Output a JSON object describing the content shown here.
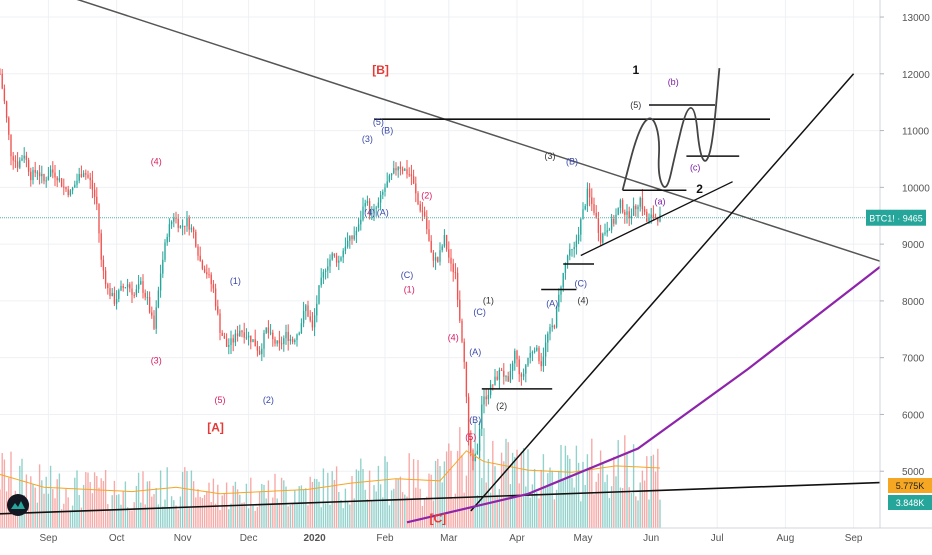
{
  "chart_data": {
    "type": "candlestick",
    "symbol_badge": "BTC1! · 9465",
    "last_price": 9465,
    "volume_badges": [
      "5.775K",
      "3.848K"
    ],
    "ylim": [
      4000,
      13300
    ],
    "y_ticks": [
      5000,
      6000,
      7000,
      8000,
      9000,
      10000,
      11000,
      12000,
      13000
    ],
    "y_tick_labels": [
      "5000",
      "6000",
      "7000",
      "8000",
      "9000",
      "10000",
      "11000",
      "12000",
      "13000"
    ],
    "x_ticks": [
      "Sep",
      "Oct",
      "Nov",
      "Dec",
      "2020",
      "Feb",
      "Mar",
      "Apr",
      "May",
      "Jun",
      "Jul",
      "Aug",
      "Sep"
    ],
    "x_range_days": [
      0,
      400
    ],
    "x_tick_days": [
      22,
      53,
      83,
      113,
      143,
      175,
      204,
      235,
      265,
      296,
      326,
      357,
      388
    ],
    "price_path": [
      [
        0,
        12000
      ],
      [
        2,
        11500
      ],
      [
        5,
        10600
      ],
      [
        8,
        10400
      ],
      [
        11,
        10600
      ],
      [
        14,
        10200
      ],
      [
        17,
        10300
      ],
      [
        20,
        10100
      ],
      [
        23,
        10300
      ],
      [
        26,
        10200
      ],
      [
        29,
        10000
      ],
      [
        32,
        9900
      ],
      [
        36,
        10200
      ],
      [
        38,
        10300
      ],
      [
        41,
        10100
      ],
      [
        44,
        9700
      ],
      [
        46,
        8700
      ],
      [
        49,
        8200
      ],
      [
        52,
        8000
      ],
      [
        55,
        8200
      ],
      [
        58,
        8300
      ],
      [
        61,
        8100
      ],
      [
        64,
        8300
      ],
      [
        67,
        8000
      ],
      [
        70,
        7500
      ],
      [
        73,
        8500
      ],
      [
        76,
        9200
      ],
      [
        79,
        9500
      ],
      [
        82,
        9300
      ],
      [
        85,
        9400
      ],
      [
        88,
        9200
      ],
      [
        91,
        8700
      ],
      [
        94,
        8500
      ],
      [
        97,
        8200
      ],
      [
        100,
        7500
      ],
      [
        103,
        7200
      ],
      [
        106,
        7300
      ],
      [
        109,
        7500
      ],
      [
        112,
        7400
      ],
      [
        115,
        7300
      ],
      [
        118,
        7100
      ],
      [
        121,
        7500
      ],
      [
        124,
        7300
      ],
      [
        127,
        7200
      ],
      [
        130,
        7400
      ],
      [
        133,
        7300
      ],
      [
        136,
        7500
      ],
      [
        139,
        7900
      ],
      [
        142,
        7500
      ],
      [
        145,
        8200
      ],
      [
        148,
        8600
      ],
      [
        151,
        8800
      ],
      [
        154,
        8700
      ],
      [
        157,
        9000
      ],
      [
        160,
        9100
      ],
      [
        163,
        9300
      ],
      [
        166,
        9800
      ],
      [
        169,
        9500
      ],
      [
        172,
        9700
      ],
      [
        175,
        10000
      ],
      [
        178,
        10200
      ],
      [
        181,
        10400
      ],
      [
        184,
        10300
      ],
      [
        187,
        10200
      ],
      [
        190,
        9700
      ],
      [
        193,
        9500
      ],
      [
        196,
        8800
      ],
      [
        199,
        8700
      ],
      [
        202,
        9100
      ],
      [
        205,
        8600
      ],
      [
        207,
        8500
      ],
      [
        209,
        7700
      ],
      [
        211,
        7000
      ],
      [
        213,
        5500
      ],
      [
        215,
        5100
      ],
      [
        217,
        5400
      ],
      [
        219,
        6200
      ],
      [
        222,
        6400
      ],
      [
        225,
        6600
      ],
      [
        228,
        6800
      ],
      [
        231,
        6500
      ],
      [
        234,
        7100
      ],
      [
        237,
        6600
      ],
      [
        240,
        7000
      ],
      [
        243,
        7200
      ],
      [
        246,
        6900
      ],
      [
        249,
        7400
      ],
      [
        252,
        7600
      ],
      [
        255,
        8300
      ],
      [
        258,
        8800
      ],
      [
        261,
        8900
      ],
      [
        264,
        9400
      ],
      [
        267,
        9900
      ],
      [
        270,
        9600
      ],
      [
        273,
        9100
      ],
      [
        276,
        9300
      ],
      [
        279,
        9400
      ],
      [
        282,
        9700
      ],
      [
        285,
        9500
      ],
      [
        288,
        9600
      ],
      [
        291,
        9800
      ],
      [
        294,
        9400
      ],
      [
        297,
        9500
      ],
      [
        300,
        9465
      ]
    ],
    "volume_path": [
      [
        0,
        5000
      ],
      [
        20,
        3800
      ],
      [
        40,
        3600
      ],
      [
        60,
        3400
      ],
      [
        80,
        3800
      ],
      [
        100,
        3200
      ],
      [
        120,
        3400
      ],
      [
        140,
        3600
      ],
      [
        160,
        4200
      ],
      [
        180,
        4600
      ],
      [
        200,
        4400
      ],
      [
        212,
        7200
      ],
      [
        220,
        6200
      ],
      [
        240,
        5400
      ],
      [
        260,
        5200
      ],
      [
        280,
        5800
      ],
      [
        300,
        5600
      ]
    ],
    "volume_axis_max": 14000,
    "overlays": {
      "descending_channel": [
        [
          28,
          13400
        ],
        [
          400,
          8700
        ]
      ],
      "horizontal_resistance": [
        [
          170,
          11200
        ],
        [
          350,
          11200
        ]
      ],
      "rising_support": [
        [
          214,
          4300
        ],
        [
          388,
          12000
        ]
      ],
      "secondary_support": [
        [
          264,
          8800
        ],
        [
          333,
          10100
        ]
      ],
      "purple_parabola": [
        [
          185,
          4100
        ],
        [
          240,
          4600
        ],
        [
          290,
          5400
        ],
        [
          340,
          6800
        ],
        [
          400,
          8600
        ]
      ],
      "long_base_line": [
        [
          0,
          4250
        ],
        [
          400,
          4800
        ]
      ],
      "short_levels": [
        [
          [
            219,
            6450
          ],
          [
            251,
            6450
          ]
        ],
        [
          [
            246,
            8200
          ],
          [
            262,
            8200
          ]
        ],
        [
          [
            256,
            8650
          ],
          [
            270,
            8650
          ]
        ],
        [
          [
            283,
            9950
          ],
          [
            312,
            9950
          ]
        ],
        [
          [
            295,
            11450
          ],
          [
            325,
            11450
          ]
        ],
        [
          [
            312,
            10550
          ],
          [
            336,
            10550
          ]
        ]
      ]
    },
    "projection_path": [
      [
        283,
        9950
      ],
      [
        290,
        11000
      ],
      [
        296,
        11300
      ],
      [
        300,
        10900
      ],
      [
        299,
        10200
      ],
      [
        303,
        9900
      ],
      [
        307,
        10600
      ],
      [
        312,
        11400
      ],
      [
        316,
        11400
      ],
      [
        318,
        10600
      ],
      [
        321,
        10400
      ],
      [
        324,
        10800
      ],
      [
        327,
        12100
      ]
    ],
    "annotations": [
      {
        "text": "[B]",
        "x": 173,
        "y": 12000,
        "color": "#e53935"
      },
      {
        "text": "[A]",
        "x": 98,
        "y": 5700,
        "color": "#e53935"
      },
      {
        "text": "[C]",
        "x": 199,
        "y": 4100,
        "color": "#e53935"
      },
      {
        "text": "1",
        "x": 289,
        "y": 12000,
        "color": "#111111"
      },
      {
        "text": "2",
        "x": 318,
        "y": 9900,
        "color": "#111111"
      },
      {
        "text": "(b)",
        "x": 306,
        "y": 11800,
        "color": "#7b1fa2"
      },
      {
        "text": "(c)",
        "x": 316,
        "y": 10300,
        "color": "#7b1fa2"
      },
      {
        "text": "(a)",
        "x": 300,
        "y": 9700,
        "color": "#7b1fa2"
      },
      {
        "text": "(5)",
        "x": 289,
        "y": 11400,
        "color": "#333333"
      },
      {
        "text": "(4)",
        "x": 71,
        "y": 10400,
        "color": "#d81b60"
      },
      {
        "text": "(3)",
        "x": 71,
        "y": 6900,
        "color": "#d81b60"
      },
      {
        "text": "(5)",
        "x": 100,
        "y": 6200,
        "color": "#d81b60"
      },
      {
        "text": "(1)",
        "x": 107,
        "y": 8300,
        "color": "#3949ab"
      },
      {
        "text": "(2)",
        "x": 122,
        "y": 6200,
        "color": "#3949ab"
      },
      {
        "text": "(3)",
        "x": 167,
        "y": 10800,
        "color": "#3949ab"
      },
      {
        "text": "(5)",
        "x": 172,
        "y": 11100,
        "color": "#3949ab"
      },
      {
        "text": "(B)",
        "x": 176,
        "y": 10950,
        "color": "#3949ab"
      },
      {
        "text": "(4)",
        "x": 168,
        "y": 9500,
        "color": "#3949ab"
      },
      {
        "text": "(A)",
        "x": 174,
        "y": 9500,
        "color": "#3949ab"
      },
      {
        "text": "(2)",
        "x": 194,
        "y": 9800,
        "color": "#d81b60"
      },
      {
        "text": "(C)",
        "x": 185,
        "y": 8400,
        "color": "#3949ab"
      },
      {
        "text": "(1)",
        "x": 186,
        "y": 8150,
        "color": "#d81b60"
      },
      {
        "text": "(4)",
        "x": 206,
        "y": 7300,
        "color": "#d81b60"
      },
      {
        "text": "(A)",
        "x": 216,
        "y": 7050,
        "color": "#3949ab"
      },
      {
        "text": "(C)",
        "x": 218,
        "y": 7750,
        "color": "#3949ab"
      },
      {
        "text": "(1)",
        "x": 222,
        "y": 7950,
        "color": "#333333"
      },
      {
        "text": "(B)",
        "x": 216,
        "y": 5850,
        "color": "#3949ab"
      },
      {
        "text": "(5)",
        "x": 214,
        "y": 5550,
        "color": "#d81b60"
      },
      {
        "text": "(2)",
        "x": 228,
        "y": 6100,
        "color": "#333333"
      },
      {
        "text": "(3)",
        "x": 250,
        "y": 10500,
        "color": "#333333"
      },
      {
        "text": "(B)",
        "x": 260,
        "y": 10400,
        "color": "#3949ab"
      },
      {
        "text": "(A)",
        "x": 251,
        "y": 7900,
        "color": "#3949ab"
      },
      {
        "text": "(C)",
        "x": 264,
        "y": 8250,
        "color": "#3949ab"
      },
      {
        "text": "(4)",
        "x": 265,
        "y": 7950,
        "color": "#333333"
      }
    ]
  }
}
